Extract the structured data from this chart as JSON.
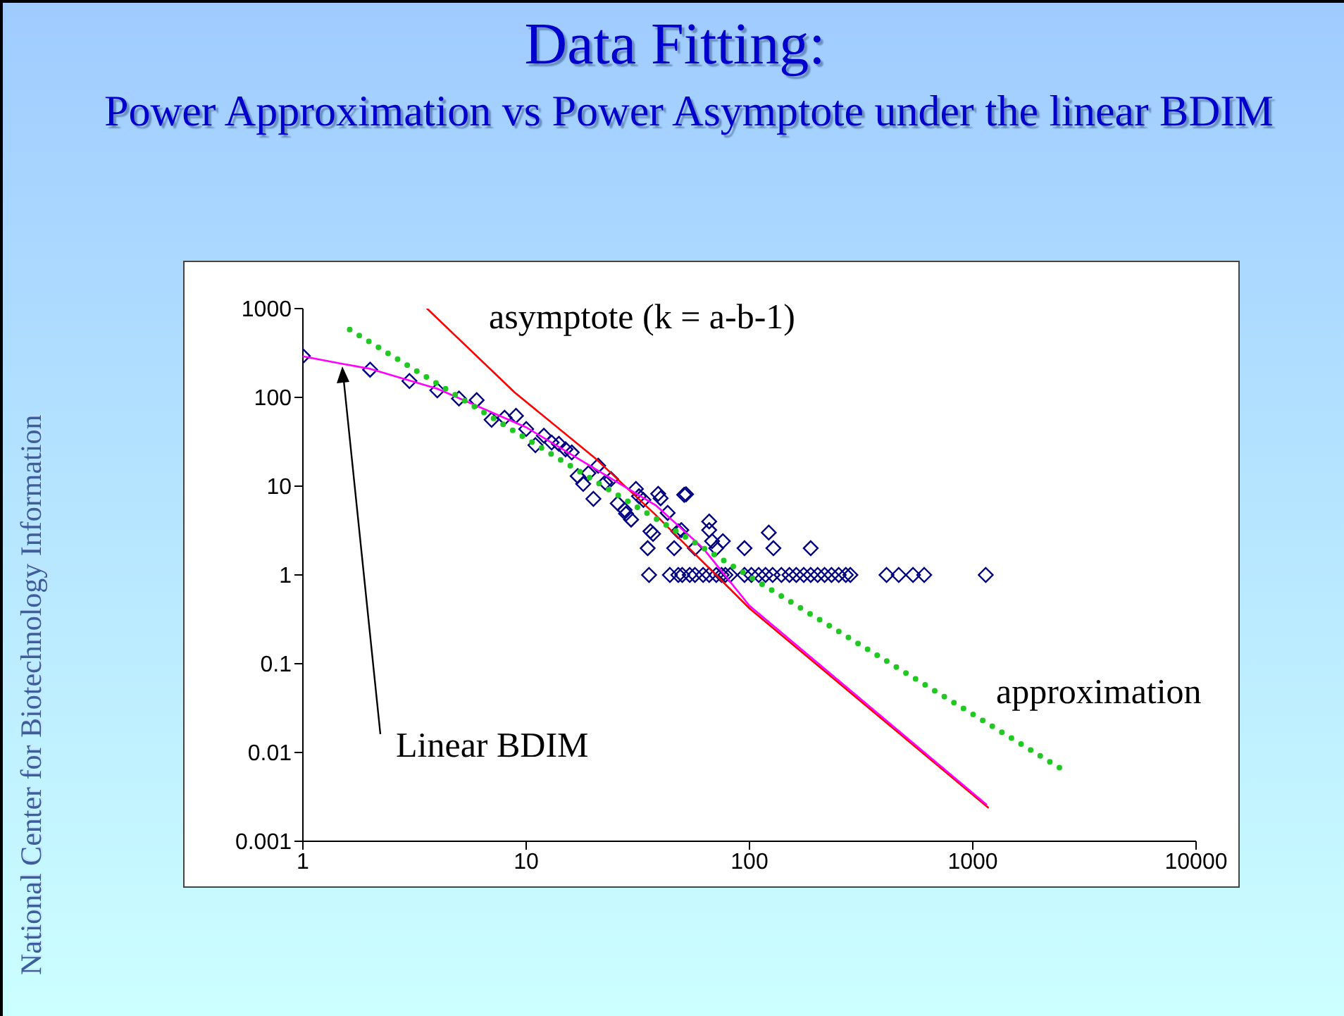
{
  "chart_data": {
    "type": "scatter",
    "title": "Data Fitting:",
    "subtitle": "Power Approximation vs Power Asymptote under the linear BDIM",
    "annotations": [
      "asymptote (k = a-b-1)",
      "approximation",
      "Linear BDIM",
      "National Center for Biotechnology Information"
    ],
    "xlim": [
      1,
      10000
    ],
    "xticks": [
      1,
      10,
      100,
      1000,
      10000
    ],
    "ylim": [
      0.001,
      1000
    ],
    "yticks": [
      0.001,
      0.01,
      0.1,
      1,
      10,
      100,
      1000
    ],
    "log": "xy",
    "grid": false,
    "legend": false,
    "series": [
      {
        "marker": "diamond",
        "color": "#000080",
        "x": [
          1,
          2,
          3,
          4,
          5,
          6,
          7,
          8,
          9,
          10,
          11,
          12,
          13,
          14,
          15,
          16,
          17,
          18,
          19,
          20,
          21,
          22.6,
          24,
          25.7,
          27.6,
          28,
          29.5,
          31,
          32,
          33.5,
          36,
          37,
          35,
          39,
          40,
          43,
          46,
          48,
          49.5,
          52,
          57,
          66,
          68,
          76,
          71,
          95,
          122,
          128,
          188,
          66,
          51,
          35.5,
          44,
          48,
          50,
          54,
          57,
          62,
          66,
          71,
          75,
          78,
          82,
          95,
          102,
          110,
          118,
          127,
          139,
          151,
          162,
          175,
          188,
          202,
          217,
          233,
          251,
          270,
          283,
          411,
          466,
          540,
          606,
          1143
        ],
        "values": [
          292,
          205,
          153,
          120,
          97,
          93,
          56,
          59,
          62,
          44,
          29,
          37,
          31,
          30,
          26,
          24,
          13,
          10.6,
          14,
          7.2,
          17,
          11,
          12,
          6.4,
          5.4,
          4.9,
          4.2,
          9.3,
          7.7,
          7,
          3.1,
          2.9,
          2,
          8.2,
          7.3,
          5,
          2,
          3.1,
          3.2,
          8.1,
          2,
          3.2,
          2.4,
          2.4,
          2,
          2,
          3,
          2,
          2,
          4,
          8,
          1,
          1,
          1,
          1,
          1,
          1,
          1,
          1,
          1,
          1,
          1,
          1,
          1,
          1,
          1,
          1,
          1,
          1,
          1,
          1,
          1,
          1,
          1,
          1,
          1,
          1,
          1,
          1,
          1,
          1,
          1,
          1,
          1
        ]
      },
      {
        "type": "line",
        "marker": "none",
        "line_style": "solid",
        "color": "#ff0000",
        "x": [
          3.6,
          8.9,
          20.3,
          37.8,
          100,
          1170
        ],
        "values": [
          1000,
          113,
          20.8,
          4.8,
          0.42,
          0.0024
        ]
      },
      {
        "type": "line",
        "marker": "none",
        "line_style": "solid",
        "color": "#ff00ff",
        "x": [
          1,
          1.48,
          2,
          4,
          10,
          23.5,
          38,
          62,
          100,
          1150
        ],
        "values": [
          290,
          240,
          210,
          125,
          46,
          12.6,
          6.1,
          2,
          0.45,
          0.0026
        ]
      },
      {
        "type": "line",
        "marker": "none",
        "line_style": "dotted",
        "color": "#22c822",
        "x": [
          1.62,
          2500
        ],
        "values": [
          580,
          0.0065
        ]
      }
    ]
  }
}
